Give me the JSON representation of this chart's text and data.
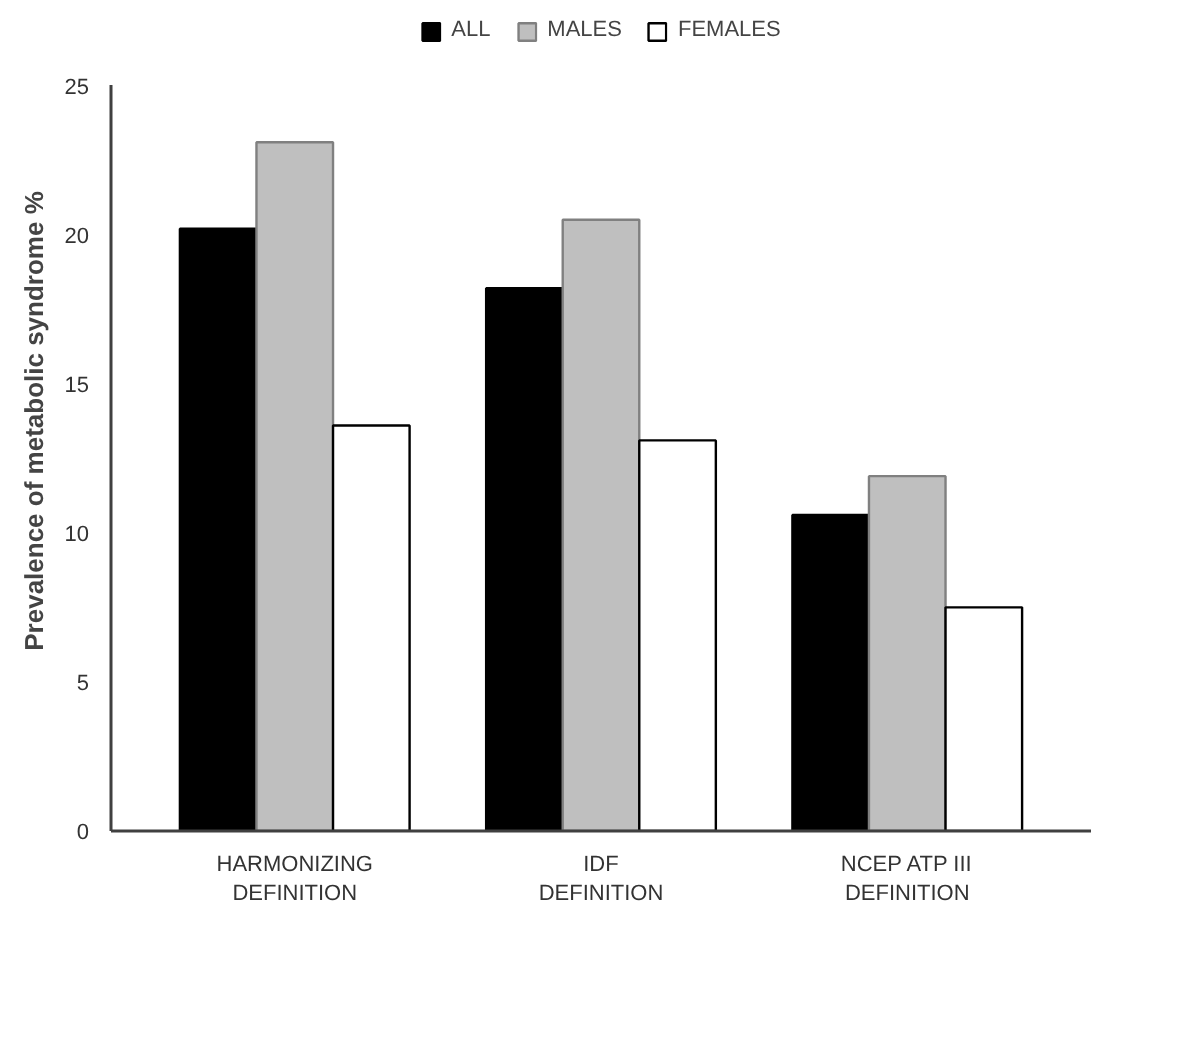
{
  "chart_data": {
    "type": "bar",
    "ylabel": "Prevalence of metabolic syndrome %",
    "categories": [
      "HARMONIZING\nDEFINITION",
      "IDF\nDEFINITION",
      "NCEP ATP III\nDEFINITION"
    ],
    "series": [
      {
        "name": "ALL",
        "color": "#000000",
        "values": [
          20.2,
          18.2,
          10.6
        ]
      },
      {
        "name": "MALES",
        "color": "#bfbfbf",
        "values": [
          23.1,
          20.5,
          11.9
        ]
      },
      {
        "name": "FEMALES",
        "color": "#ffffff",
        "values": [
          13.6,
          13.1,
          7.5
        ]
      }
    ],
    "ylim": [
      0,
      25
    ],
    "yticks": [
      0,
      5,
      10,
      15,
      20,
      25
    ],
    "grid": false,
    "legend": "top"
  }
}
